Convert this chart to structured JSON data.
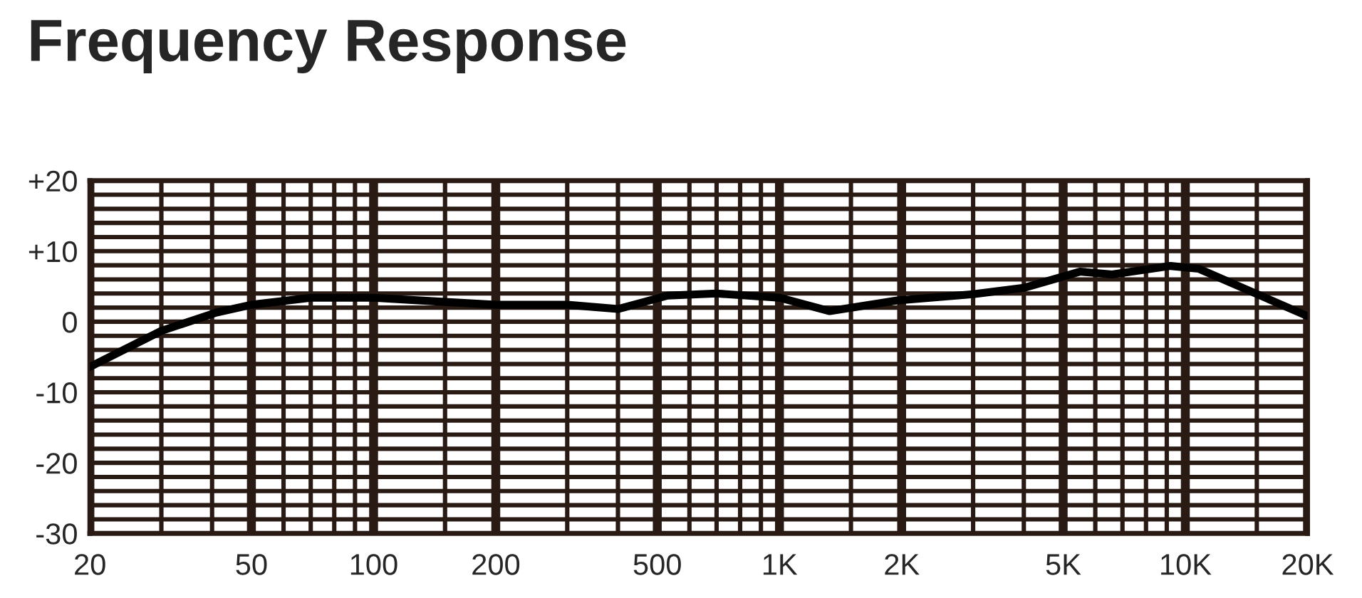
{
  "chart_data": {
    "type": "line",
    "title": "Frequency Response",
    "log": "x",
    "grid": true,
    "line_style": "solid",
    "marker": "none",
    "x": [
      20,
      30,
      41,
      50,
      70,
      100,
      150,
      200,
      300,
      400,
      530,
      700,
      1000,
      1330,
      1940,
      3000,
      4000,
      5500,
      6600,
      9200,
      10800,
      14900,
      20000
    ],
    "series": [
      {
        "color": "#000000",
        "values": [
          -6.4,
          -1.3,
          1.3,
          2.4,
          3.4,
          3.4,
          2.8,
          2.4,
          2.4,
          1.8,
          3.7,
          4.0,
          3.4,
          1.5,
          3.0,
          3.9,
          4.8,
          7.1,
          6.7,
          7.9,
          7.5,
          4.0,
          0.8
        ]
      }
    ],
    "xlim": [
      20,
      20000
    ],
    "xticks": [
      20,
      {
        "value": 30,
        "label": null
      },
      {
        "value": 40,
        "label": null
      },
      50,
      {
        "value": 60,
        "label": null
      },
      {
        "value": 70,
        "label": null
      },
      {
        "value": 80,
        "label": null
      },
      {
        "value": 90,
        "label": null
      },
      100,
      {
        "value": 150,
        "label": null
      },
      200,
      {
        "value": 300,
        "label": null
      },
      {
        "value": 400,
        "label": null
      },
      500,
      {
        "value": 600,
        "label": null
      },
      {
        "value": 700,
        "label": null
      },
      {
        "value": 800,
        "label": null
      },
      {
        "value": 900,
        "label": null
      },
      {
        "value": 1000,
        "label": "1K"
      },
      {
        "value": 1500,
        "label": null
      },
      {
        "value": 2000,
        "label": "2K"
      },
      {
        "value": 3000,
        "label": null
      },
      {
        "value": 4000,
        "label": null
      },
      {
        "value": 5000,
        "label": "5K"
      },
      {
        "value": 6000,
        "label": null
      },
      {
        "value": 7000,
        "label": null
      },
      {
        "value": 8000,
        "label": null
      },
      {
        "value": 9000,
        "label": null
      },
      {
        "value": 10000,
        "label": "10K"
      },
      {
        "value": 15000,
        "label": null
      },
      {
        "value": 20000,
        "label": "20K"
      }
    ],
    "ylim": [
      -30,
      20
    ],
    "yticks": [
      -30,
      {
        "value": -28,
        "label": null
      },
      {
        "value": -26,
        "label": null
      },
      {
        "value": -24,
        "label": null
      },
      {
        "value": -22,
        "label": null
      },
      -20,
      {
        "value": -18,
        "label": null
      },
      {
        "value": -16,
        "label": null
      },
      {
        "value": -14,
        "label": null
      },
      {
        "value": -12,
        "label": null
      },
      -10,
      {
        "value": -8,
        "label": null
      },
      {
        "value": -6,
        "label": null
      },
      {
        "value": -4,
        "label": null
      },
      {
        "value": -2,
        "label": null
      },
      0,
      {
        "value": 2,
        "label": null
      },
      {
        "value": 4,
        "label": null
      },
      {
        "value": 6,
        "label": null
      },
      {
        "value": 8,
        "label": null
      },
      {
        "value": 10,
        "label": "+10"
      },
      {
        "value": 12,
        "label": null
      },
      {
        "value": 14,
        "label": null
      },
      {
        "value": 16,
        "label": null
      },
      {
        "value": 18,
        "label": null
      },
      {
        "value": 20,
        "label": "+20"
      }
    ]
  }
}
